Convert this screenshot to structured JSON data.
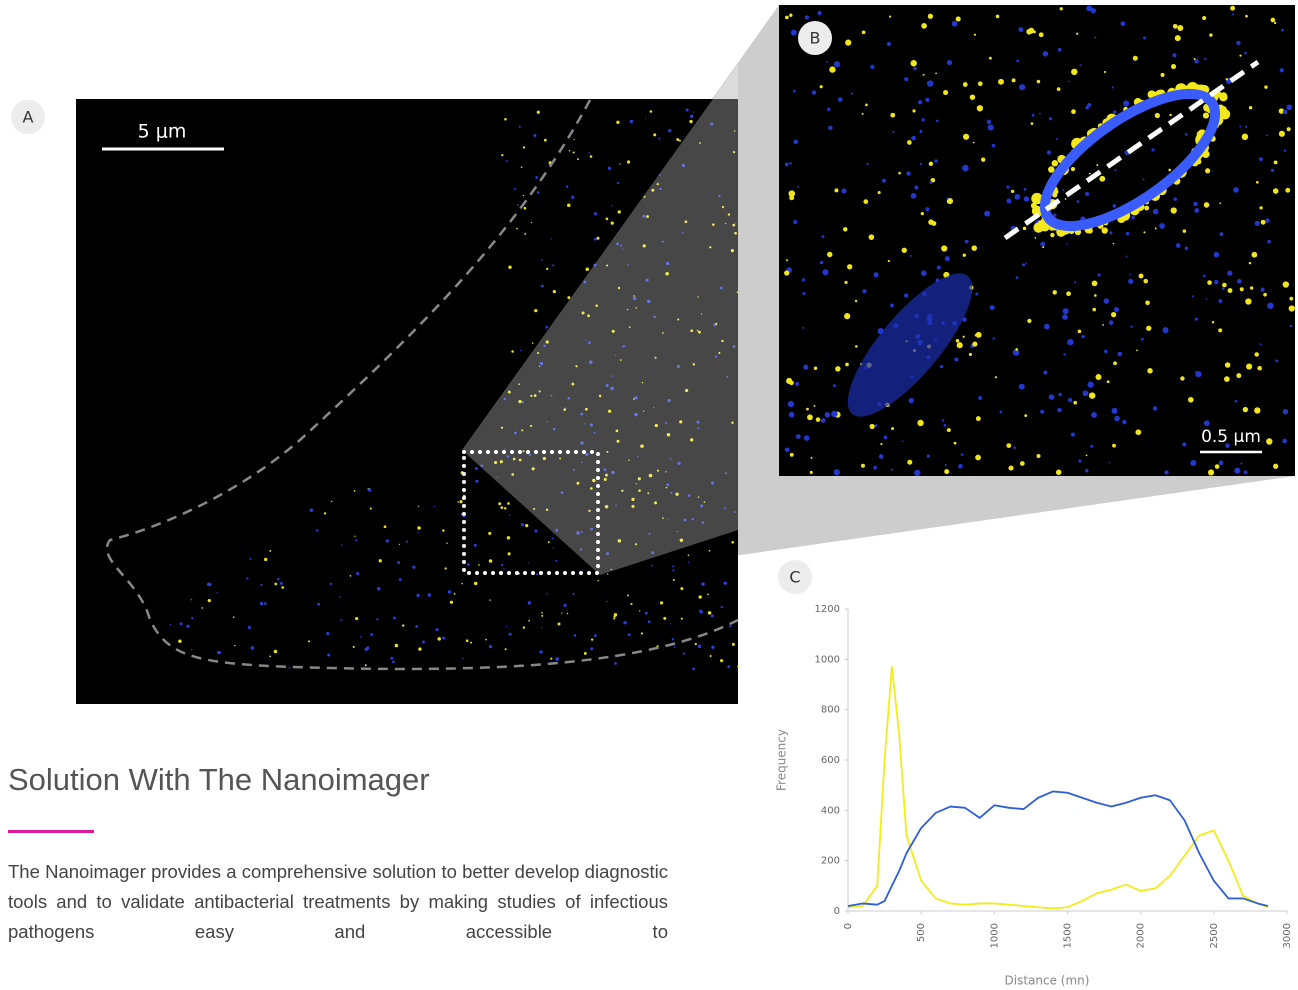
{
  "panels": {
    "a_label": "A",
    "a_scale": "5 μm",
    "b_label": "B",
    "b_scale": "0.5 μm",
    "c_label": "C"
  },
  "heading": "Solution With The Nanoimager",
  "body": "The Nanoimager provides a comprehensive solution to better develop diagnostic tools and to validate antibacterial treatments by making studies of infectious pathogens easy and accessible to",
  "chart_data": {
    "type": "line",
    "x_label": "Distance (mn)",
    "y_label": "Frequency",
    "x": [
      0,
      100,
      200,
      250,
      300,
      350,
      400,
      500,
      600,
      700,
      800,
      900,
      1000,
      1100,
      1200,
      1300,
      1400,
      1500,
      1600,
      1700,
      1800,
      1900,
      2000,
      2100,
      2200,
      2300,
      2400,
      2500,
      2600,
      2700,
      2800,
      2870
    ],
    "series": [
      {
        "color": "#f2ec1a",
        "values": [
          15,
          20,
          100,
          600,
          970,
          700,
          300,
          120,
          50,
          30,
          25,
          30,
          30,
          25,
          20,
          15,
          10,
          15,
          40,
          70,
          85,
          105,
          80,
          90,
          140,
          220,
          300,
          320,
          200,
          60,
          30,
          15
        ]
      },
      {
        "color": "#2f5fd6",
        "values": [
          20,
          30,
          25,
          40,
          100,
          160,
          230,
          330,
          390,
          415,
          410,
          370,
          420,
          410,
          405,
          450,
          475,
          470,
          450,
          430,
          415,
          430,
          450,
          460,
          440,
          360,
          230,
          120,
          50,
          50,
          30,
          20
        ]
      }
    ],
    "xlim": [
      0,
      3000
    ],
    "xticks": [
      0,
      500,
      1000,
      1500,
      2000,
      2500,
      3000
    ],
    "ylim": [
      0,
      1200
    ],
    "yticks": [
      0,
      200,
      400,
      600,
      800,
      1000,
      1200
    ]
  }
}
